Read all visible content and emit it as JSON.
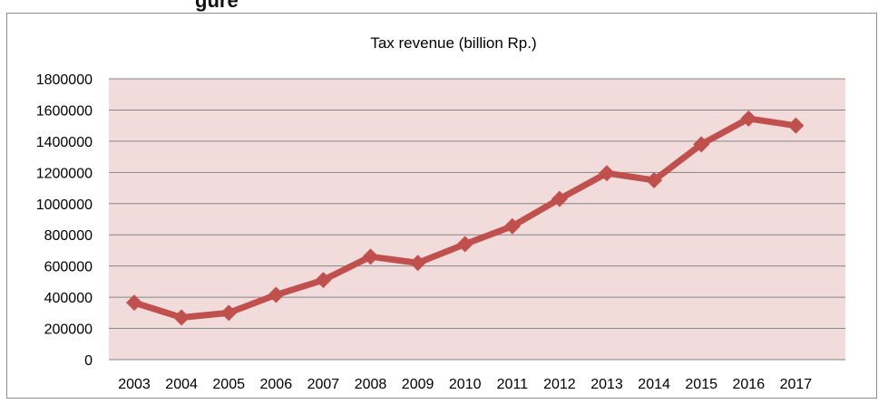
{
  "page_heading_cut": "gure",
  "chart_data": {
    "type": "line",
    "title": "Tax revenue  (billion Rp.)",
    "xlabel": "",
    "ylabel": "",
    "categories": [
      "2003",
      "2004",
      "2005",
      "2006",
      "2007",
      "2008",
      "2009",
      "2010",
      "2011",
      "2012",
      "2013",
      "2014",
      "2015",
      "2016",
      "2017"
    ],
    "series": [
      {
        "values": [
          365000,
          270000,
          300000,
          415000,
          510000,
          660000,
          620000,
          740000,
          855000,
          1030000,
          1195000,
          1150000,
          1380000,
          1545000,
          1500000
        ]
      }
    ],
    "ylim": [
      0,
      1800000
    ],
    "ytick_step": 200000,
    "y_tick_labels": [
      "0",
      "200000",
      "400000",
      "600000",
      "800000",
      "1000000",
      "1200000",
      "1400000",
      "1600000",
      "1800000"
    ],
    "grid": true,
    "legend": "none",
    "colors": {
      "line": "#c0504d",
      "plot_bg": "#f2dcdb",
      "gridline": "#868686"
    }
  }
}
